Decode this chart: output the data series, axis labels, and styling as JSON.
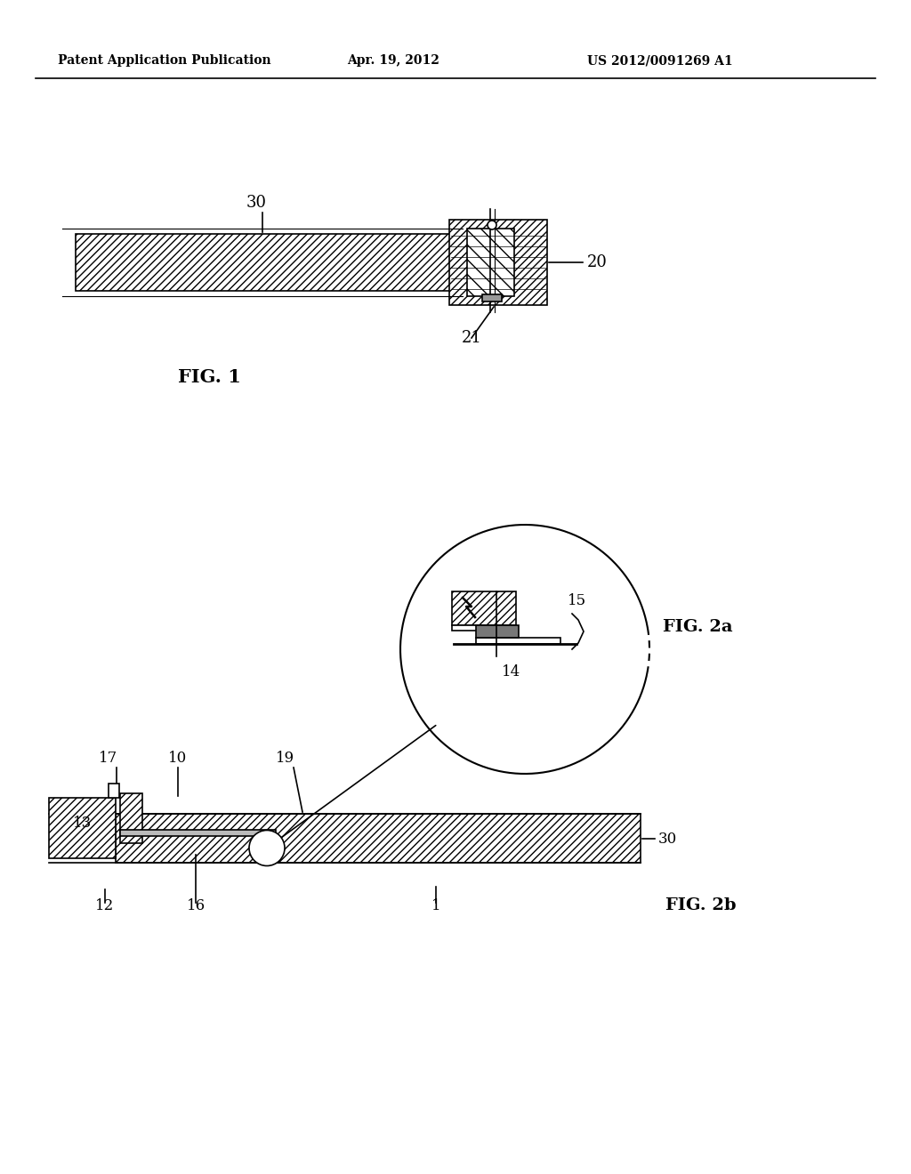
{
  "bg_color": "#ffffff",
  "header_left": "Patent Application Publication",
  "header_center": "Apr. 19, 2012",
  "header_right": "US 2012/0091269 A1",
  "fig1_label": "FIG. 1",
  "fig2a_label": "FIG. 2a",
  "fig2b_label": "FIG. 2b",
  "label_30_fig1": "30",
  "label_20": "20",
  "label_21": "21",
  "label_15": "15",
  "label_14": "14",
  "label_17": "17",
  "label_10": "10",
  "label_19": "19",
  "label_30_fig2": "30",
  "label_13": "13",
  "label_12": "12",
  "label_16": "16",
  "label_1": "1",
  "line_color": "#000000"
}
